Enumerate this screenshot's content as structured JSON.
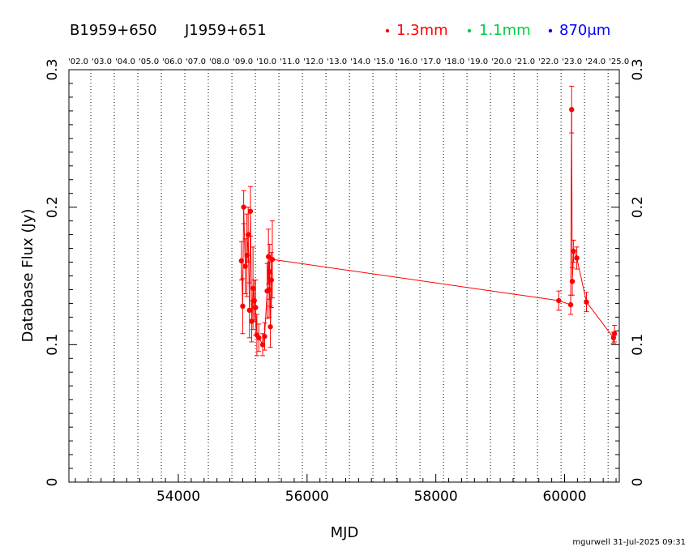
{
  "chart_data": {
    "type": "scatter",
    "title": "B1959+650",
    "subtitle": "J1959+651",
    "xlabel": "MJD",
    "ylabel": "Database Flux (Jy)",
    "xlim": [
      52300,
      60850
    ],
    "ylim": [
      0,
      0.3
    ],
    "x_ticks": [
      54000,
      56000,
      58000,
      60000
    ],
    "x_tick_labels": [
      "54000",
      "56000",
      "58000",
      "60000"
    ],
    "y_ticks": [
      0,
      0.1,
      0.2,
      0.3
    ],
    "y_tick_labels": [
      "0",
      "0.1",
      "0.2",
      "0.3"
    ],
    "year_axis": {
      "labels": [
        "'02.0",
        "'03.0",
        "'04.0",
        "'05.0",
        "'06.0",
        "'07.0",
        "'08.0",
        "'09.0",
        "'10.0",
        "'11.0",
        "'12.0",
        "'13.0",
        "'14.0",
        "'15.0",
        "'16.0",
        "'17.0",
        "'18.0",
        "'19.0",
        "'20.0",
        "'21.0",
        "'22.0",
        "'23.0",
        "'24.0",
        "'25.0"
      ],
      "mjd": [
        52275,
        52640,
        53005,
        53371,
        53736,
        54101,
        54466,
        54832,
        55197,
        55562,
        55927,
        56293,
        56658,
        57023,
        57388,
        57754,
        58119,
        58484,
        58849,
        59215,
        59580,
        59945,
        60310,
        60676
      ]
    },
    "grid": "vertical dotted at year boundaries",
    "legend": [
      {
        "label": "1.3mm",
        "color": "#ff0000"
      },
      {
        "label": "1.1mm",
        "color": "#00cc44"
      },
      {
        "label": "870μm",
        "color": "#0000ff"
      }
    ],
    "legend_position": "top-right",
    "series": [
      {
        "name": "1.3mm",
        "color": "#ff0000",
        "points": [
          {
            "x": 54980,
            "y": 0.161,
            "err": 0.014
          },
          {
            "x": 55000,
            "y": 0.128,
            "err": 0.02
          },
          {
            "x": 55015,
            "y": 0.2,
            "err": 0.012
          },
          {
            "x": 55040,
            "y": 0.157,
            "err": 0.02
          },
          {
            "x": 55065,
            "y": 0.165,
            "err": 0.03
          },
          {
            "x": 55085,
            "y": 0.18,
            "err": 0.02
          },
          {
            "x": 55105,
            "y": 0.125,
            "err": 0.02
          },
          {
            "x": 55120,
            "y": 0.197,
            "err": 0.018
          },
          {
            "x": 55140,
            "y": 0.117,
            "err": 0.015
          },
          {
            "x": 55160,
            "y": 0.141,
            "err": 0.03
          },
          {
            "x": 55180,
            "y": 0.132,
            "err": 0.015
          },
          {
            "x": 55200,
            "y": 0.127,
            "err": 0.02
          },
          {
            "x": 55220,
            "y": 0.107,
            "err": 0.015
          },
          {
            "x": 55250,
            "y": 0.105,
            "err": 0.01
          },
          {
            "x": 55310,
            "y": 0.1,
            "err": 0.008
          },
          {
            "x": 55340,
            "y": 0.106,
            "err": 0.01
          },
          {
            "x": 55380,
            "y": 0.139,
            "err": 0.02
          },
          {
            "x": 55400,
            "y": 0.164,
            "err": 0.02
          },
          {
            "x": 55410,
            "y": 0.14,
            "err": 0.02
          },
          {
            "x": 55420,
            "y": 0.153,
            "err": 0.02
          },
          {
            "x": 55430,
            "y": 0.113,
            "err": 0.015
          },
          {
            "x": 55445,
            "y": 0.147,
            "err": 0.02
          },
          {
            "x": 55460,
            "y": 0.162,
            "err": 0.028
          },
          {
            "x": 59910,
            "y": 0.132,
            "err": 0.007
          },
          {
            "x": 60095,
            "y": 0.129,
            "err": 0.007
          },
          {
            "x": 60110,
            "y": 0.271,
            "err": 0.017
          },
          {
            "x": 60120,
            "y": 0.146,
            "err": 0.01
          },
          {
            "x": 60140,
            "y": 0.168,
            "err": 0.008
          },
          {
            "x": 60190,
            "y": 0.163,
            "err": 0.008
          },
          {
            "x": 60340,
            "y": 0.131,
            "err": 0.007
          },
          {
            "x": 60760,
            "y": 0.105,
            "err": 0.004
          },
          {
            "x": 60775,
            "y": 0.108,
            "err": 0.006
          }
        ]
      }
    ]
  },
  "footer": "mgurwell 31-Jul-2025 09:31"
}
